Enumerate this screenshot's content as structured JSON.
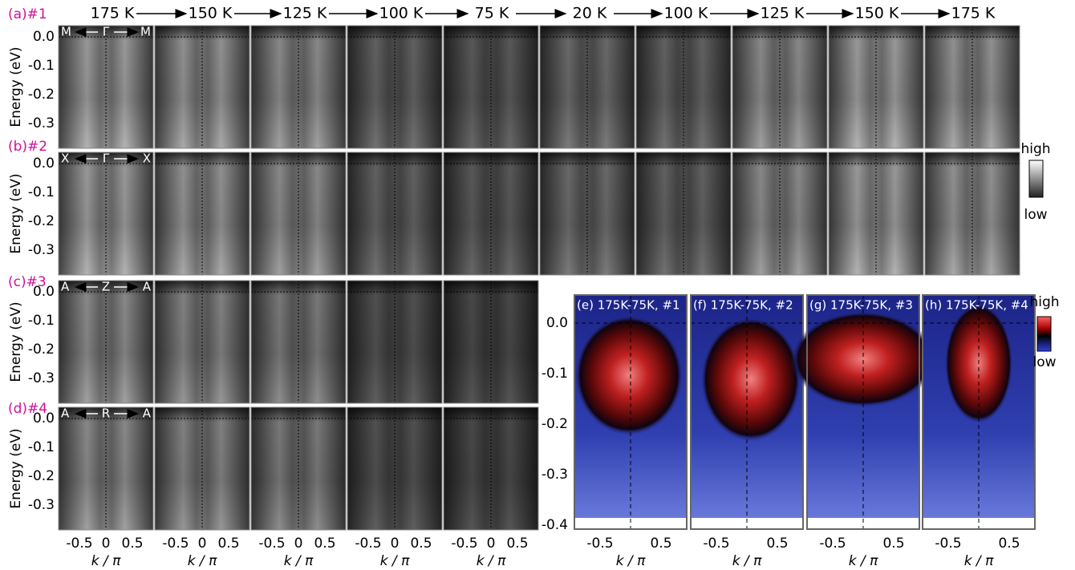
{
  "header": {
    "temperatures": [
      "175 K",
      "150 K",
      "125 K",
      "100 K",
      "75 K",
      "20 K",
      "100 K",
      "125 K",
      "150 K",
      "175 K"
    ]
  },
  "rows": [
    {
      "label": "(a)#1",
      "left": "M",
      "center": "Γ",
      "right": "M"
    },
    {
      "label": "(b)#2",
      "left": "X",
      "center": "Γ",
      "right": "X"
    },
    {
      "label": "(c)#3",
      "left": "A",
      "center": "Z",
      "right": "A"
    },
    {
      "label": "(d)#4",
      "left": "A",
      "center": "R",
      "right": "A"
    }
  ],
  "y_axis": {
    "label": "Energy (eV)",
    "ticks": [
      "0.0",
      "-0.1",
      "-0.2",
      "-0.3"
    ]
  },
  "x_axis": {
    "label": "k / π",
    "ticks": [
      "-0.5",
      "0",
      "0.5"
    ]
  },
  "colorbar_gray": {
    "high": "high",
    "low": "low"
  },
  "diff_panels": {
    "titles": [
      "(e) 175K-75K, #1",
      "(f) 175K-75K, #2",
      "(g) 175K-75K, #3",
      "(h) 175K-75K, #4"
    ],
    "y_ticks": [
      "0.0",
      "-0.1",
      "-0.2",
      "-0.3",
      "-0.4"
    ]
  },
  "colorbar_diff": {
    "high": "high",
    "low": "low"
  }
}
